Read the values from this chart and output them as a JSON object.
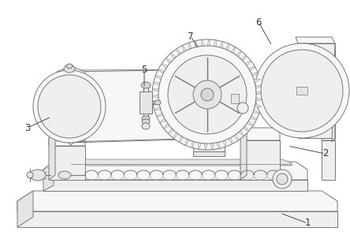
{
  "background_color": "#ffffff",
  "line_color": "#aaaaaa",
  "dark_line": "#777777",
  "label_color": "#333333",
  "figsize": [
    4.44,
    3.17
  ],
  "dpi": 100,
  "face_light": "#f7f7f7",
  "face_mid": "#efefef",
  "face_dark": "#e5e5e5",
  "face_darker": "#d8d8d8"
}
